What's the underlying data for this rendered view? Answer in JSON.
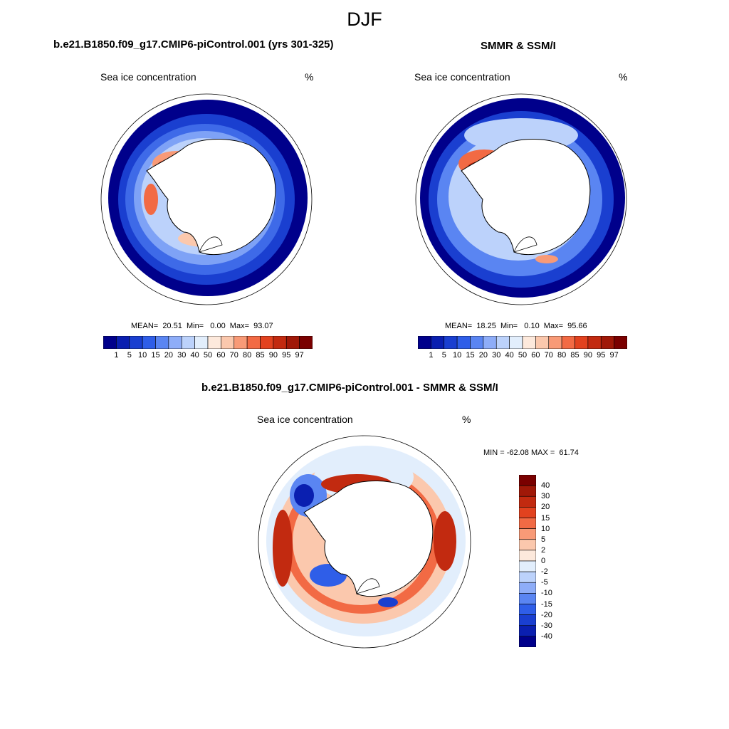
{
  "figure": {
    "title": "DJF",
    "panels": [
      {
        "title": "b.e21.B1850.f09_g17.CMIP6-piControl.001 (yrs 301-325)",
        "left_label": "Sea ice concentration",
        "right_label": "%",
        "stats": "MEAN=  20.51  Min=   0.00  Max=  93.07"
      },
      {
        "title": "SMMR & SSM/I",
        "left_label": "Sea ice concentration",
        "right_label": "%",
        "stats": "MEAN=  18.25  Min=   0.10  Max=  95.66"
      },
      {
        "title": "b.e21.B1850.f09_g17.CMIP6-piControl.001 - SMMR & SSM/I",
        "left_label": "Sea ice concentration",
        "right_label": "%",
        "stats": "MIN = -62.08 MAX =  61.74"
      }
    ]
  },
  "chart_data": [
    {
      "type": "heatmap",
      "projection": "south polar stereographic",
      "variable": "Sea ice concentration",
      "units": "%",
      "mean": 20.51,
      "min": 0.0,
      "max": 93.07,
      "colorbar": {
        "orientation": "horizontal",
        "levels": [
          "1",
          "5",
          "10",
          "15",
          "20",
          "30",
          "40",
          "50",
          "60",
          "70",
          "80",
          "85",
          "90",
          "95",
          "97"
        ],
        "colors": [
          "#00008b",
          "#0a1fb0",
          "#1a3fd0",
          "#2f5ee8",
          "#5a85f2",
          "#8eadf8",
          "#bcd2fb",
          "#e2eefc",
          "#fde9dc",
          "#fbc8ad",
          "#f89a77",
          "#f26a44",
          "#e2421f",
          "#c22a10",
          "#a01808",
          "#7a0000"
        ]
      }
    },
    {
      "type": "heatmap",
      "projection": "south polar stereographic",
      "variable": "Sea ice concentration",
      "units": "%",
      "mean": 18.25,
      "min": 0.1,
      "max": 95.66,
      "colorbar": {
        "orientation": "horizontal",
        "levels": [
          "1",
          "5",
          "10",
          "15",
          "20",
          "30",
          "40",
          "50",
          "60",
          "70",
          "80",
          "85",
          "90",
          "95",
          "97"
        ],
        "colors": [
          "#00008b",
          "#0a1fb0",
          "#1a3fd0",
          "#2f5ee8",
          "#5a85f2",
          "#8eadf8",
          "#bcd2fb",
          "#e2eefc",
          "#fde9dc",
          "#fbc8ad",
          "#f89a77",
          "#f26a44",
          "#e2421f",
          "#c22a10",
          "#a01808",
          "#7a0000"
        ]
      }
    },
    {
      "type": "heatmap",
      "projection": "south polar stereographic",
      "variable": "Sea ice concentration",
      "units": "%",
      "min": -62.08,
      "max": 61.74,
      "colorbar": {
        "orientation": "vertical",
        "levels": [
          "40",
          "30",
          "20",
          "15",
          "10",
          "5",
          "2",
          "0",
          "-2",
          "-5",
          "-10",
          "-15",
          "-20",
          "-30",
          "-40"
        ],
        "colors": [
          "#7a0000",
          "#a01808",
          "#c22a10",
          "#e2421f",
          "#f26a44",
          "#f89a77",
          "#fbc8ad",
          "#fde9dc",
          "#e2eefc",
          "#bcd2fb",
          "#8eadf8",
          "#5a85f2",
          "#2f5ee8",
          "#1a3fd0",
          "#0a1fb0",
          "#00008b"
        ]
      }
    }
  ]
}
